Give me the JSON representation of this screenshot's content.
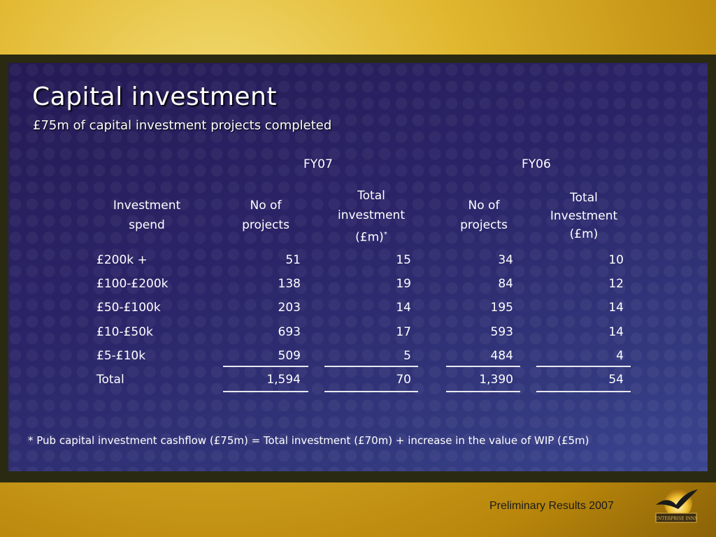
{
  "slide": {
    "title": "Capital investment",
    "subtitle": "£75m of capital investment projects completed"
  },
  "table": {
    "groups": [
      "FY07",
      "FY06"
    ],
    "headers": {
      "spend": [
        "Investment",
        "spend"
      ],
      "fy07_projects": [
        "No of",
        "projects"
      ],
      "fy07_total": [
        "Total",
        "investment",
        "(£m)",
        "*"
      ],
      "fy06_projects": [
        "No of",
        "projects"
      ],
      "fy06_total": [
        "Total",
        "Investment",
        "(£m)"
      ]
    },
    "rows": [
      {
        "band": "£200k +",
        "fy07_projects": "51",
        "fy07_total": "15",
        "fy06_projects": "34",
        "fy06_total": "10"
      },
      {
        "band": "£100-£200k",
        "fy07_projects": "138",
        "fy07_total": "19",
        "fy06_projects": "84",
        "fy06_total": "12"
      },
      {
        "band": "£50-£100k",
        "fy07_projects": "203",
        "fy07_total": "14",
        "fy06_projects": "195",
        "fy06_total": "14"
      },
      {
        "band": "£10-£50k",
        "fy07_projects": "693",
        "fy07_total": "17",
        "fy06_projects": "593",
        "fy06_total": "14"
      },
      {
        "band": "£5-£10k",
        "fy07_projects": "509",
        "fy07_total": "5",
        "fy06_projects": "484",
        "fy06_total": "4"
      },
      {
        "band": "Total",
        "fy07_projects": "1,594",
        "fy07_total": "70",
        "fy06_projects": "1,390",
        "fy06_total": "54"
      }
    ]
  },
  "footnote": "* Pub capital investment cashflow (£75m) = Total investment (£70m) + increase in the value of WIP (£5m)",
  "footer": {
    "label": "Preliminary Results 2007",
    "logo_text": "ENTERPRISE INNS"
  },
  "colors": {
    "panel": "#2b2569",
    "frame_gold": "#e2b830",
    "text": "#ffffff"
  }
}
